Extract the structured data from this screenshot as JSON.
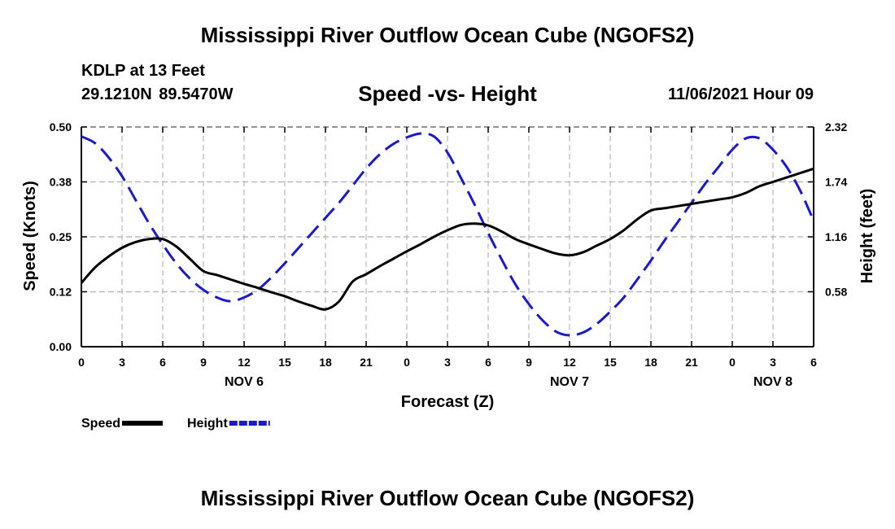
{
  "header": {
    "title": "Mississippi River Outflow Ocean Cube (NGOFS2)",
    "station": "KDLP at 13 Feet",
    "coords": "29.1210N  89.5470W",
    "subtitle": "Speed -vs- Height",
    "datestamp": "11/06/2021 Hour 09"
  },
  "footer": {
    "title": "Mississippi River Outflow Ocean Cube (NGOFS2)"
  },
  "chart_data": {
    "type": "line",
    "title": "Speed -vs- Height",
    "xlabel": "Forecast (Z)",
    "ylabel": "Speed (Knots)",
    "y2label": "Height (feet)",
    "x_unit": "hours since Nov 6 00Z",
    "xlim": [
      0,
      54
    ],
    "ylim": [
      0,
      0.5
    ],
    "y2lim": [
      0,
      2.32
    ],
    "x_ticks": [
      0,
      3,
      6,
      9,
      12,
      15,
      18,
      21,
      24,
      27,
      30,
      33,
      36,
      39,
      42,
      45,
      48,
      51,
      54
    ],
    "x_tick_labels": [
      "0",
      "3",
      "6",
      "9",
      "12",
      "15",
      "18",
      "21",
      "0",
      "3",
      "6",
      "9",
      "12",
      "15",
      "18",
      "21",
      "0",
      "3",
      "6"
    ],
    "day_labels": [
      {
        "x": 12,
        "label": "NOV 6"
      },
      {
        "x": 36,
        "label": "NOV 7"
      },
      {
        "x": 51,
        "label": "NOV 8"
      }
    ],
    "y_ticks": [
      0.0,
      0.125,
      0.25,
      0.375,
      0.5
    ],
    "y_tick_labels": [
      "0.00",
      "0.12",
      "0.25",
      "0.38",
      "0.50"
    ],
    "y2_ticks": [
      0.58,
      1.16,
      1.74,
      2.32
    ],
    "y2_tick_labels": [
      "0.58",
      "1.16",
      "1.74",
      "2.32"
    ],
    "grid": true,
    "series": [
      {
        "name": "Speed",
        "axis": "left",
        "color": "#000000",
        "dash": "solid",
        "x": [
          0,
          1,
          2,
          3,
          4,
          5,
          6,
          7,
          8,
          9,
          10,
          11,
          12,
          13,
          14,
          15,
          16,
          17,
          18,
          19,
          20,
          21,
          22,
          23,
          24,
          25,
          26,
          27,
          28,
          29,
          30,
          31,
          32,
          33,
          34,
          35,
          36,
          37,
          38,
          39,
          40,
          41,
          42,
          43,
          44,
          45,
          46,
          47,
          48,
          49,
          50,
          51,
          52,
          53,
          54
        ],
        "values": [
          0.145,
          0.18,
          0.205,
          0.225,
          0.238,
          0.245,
          0.245,
          0.228,
          0.2,
          0.172,
          0.163,
          0.153,
          0.143,
          0.134,
          0.124,
          0.115,
          0.103,
          0.093,
          0.085,
          0.103,
          0.148,
          0.165,
          0.183,
          0.2,
          0.217,
          0.233,
          0.25,
          0.265,
          0.277,
          0.28,
          0.276,
          0.262,
          0.245,
          0.233,
          0.222,
          0.212,
          0.208,
          0.215,
          0.23,
          0.245,
          0.265,
          0.29,
          0.31,
          0.315,
          0.32,
          0.325,
          0.33,
          0.335,
          0.34,
          0.35,
          0.365,
          0.375,
          0.385,
          0.395,
          0.405
        ]
      },
      {
        "name": "Height",
        "axis": "right",
        "color": "#1a1acc",
        "dash": "dashed",
        "x": [
          0,
          1,
          2,
          3,
          4,
          5,
          6,
          7,
          8,
          9,
          10,
          11,
          12,
          13,
          14,
          15,
          16,
          17,
          18,
          19,
          20,
          21,
          22,
          23,
          24,
          25,
          26,
          27,
          28,
          29,
          30,
          31,
          32,
          33,
          34,
          35,
          36,
          37,
          38,
          39,
          40,
          41,
          42,
          43,
          44,
          45,
          46,
          47,
          48,
          49,
          50,
          51,
          52,
          53,
          54
        ],
        "values": [
          2.22,
          2.15,
          2.0,
          1.8,
          1.55,
          1.3,
          1.08,
          0.88,
          0.72,
          0.6,
          0.52,
          0.48,
          0.52,
          0.6,
          0.73,
          0.88,
          1.04,
          1.2,
          1.36,
          1.52,
          1.7,
          1.88,
          2.03,
          2.14,
          2.21,
          2.25,
          2.22,
          2.05,
          1.78,
          1.5,
          1.2,
          0.92,
          0.66,
          0.45,
          0.28,
          0.16,
          0.12,
          0.15,
          0.24,
          0.37,
          0.52,
          0.71,
          0.91,
          1.12,
          1.32,
          1.52,
          1.72,
          1.9,
          2.08,
          2.2,
          2.2,
          2.08,
          1.9,
          1.65,
          1.33
        ]
      }
    ],
    "legend": [
      {
        "name": "Speed",
        "color": "#000000",
        "dash": "solid"
      },
      {
        "name": "Height",
        "color": "#1a1acc",
        "dash": "dashed"
      }
    ],
    "legend_position": "bottom-left"
  }
}
